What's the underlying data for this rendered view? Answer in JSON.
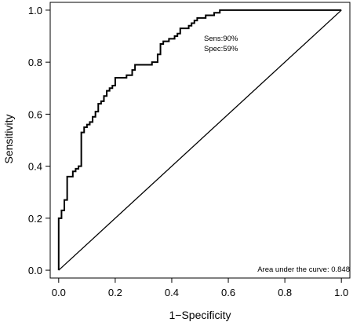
{
  "chart_data": {
    "type": "line",
    "xlabel": "1−Specificity",
    "ylabel": "Sensitivity",
    "xlim": [
      -0.03,
      1.03
    ],
    "ylim": [
      -0.03,
      1.03
    ],
    "xticks": [
      "0.0",
      "0.2",
      "0.4",
      "0.6",
      "0.8",
      "1.0"
    ],
    "yticks": [
      "0.0",
      "0.2",
      "0.4",
      "0.6",
      "0.8",
      "1.0"
    ],
    "grid": false,
    "series": [
      {
        "x": [
          0,
          0,
          0.01,
          0.01,
          0.02,
          0.02,
          0.03,
          0.03,
          0.05,
          0.05,
          0.06,
          0.06,
          0.07,
          0.07,
          0.08,
          0.08,
          0.09,
          0.09,
          0.1,
          0.1,
          0.11,
          0.11,
          0.12,
          0.12,
          0.13,
          0.13,
          0.14,
          0.14,
          0.15,
          0.15,
          0.16,
          0.16,
          0.17,
          0.17,
          0.18,
          0.18,
          0.19,
          0.19,
          0.2,
          0.2,
          0.22,
          0.22,
          0.24,
          0.24,
          0.26,
          0.26,
          0.27,
          0.27,
          0.29,
          0.29,
          0.31,
          0.31,
          0.33,
          0.33,
          0.35,
          0.35,
          0.36,
          0.36,
          0.37,
          0.37,
          0.39,
          0.39,
          0.41,
          0.41,
          0.42,
          0.42,
          0.43,
          0.43,
          0.46,
          0.46,
          0.47,
          0.47,
          0.48,
          0.48,
          0.49,
          0.49,
          0.5,
          0.5,
          0.52,
          0.52,
          0.55,
          0.55,
          0.57,
          0.57,
          1.0
        ],
        "y": [
          0,
          0.2,
          0.2,
          0.23,
          0.23,
          0.27,
          0.27,
          0.36,
          0.36,
          0.38,
          0.38,
          0.39,
          0.39,
          0.4,
          0.4,
          0.53,
          0.53,
          0.55,
          0.55,
          0.56,
          0.56,
          0.57,
          0.57,
          0.59,
          0.59,
          0.61,
          0.61,
          0.64,
          0.64,
          0.65,
          0.65,
          0.67,
          0.67,
          0.69,
          0.69,
          0.7,
          0.7,
          0.71,
          0.71,
          0.74,
          0.74,
          0.74,
          0.74,
          0.75,
          0.75,
          0.77,
          0.77,
          0.79,
          0.79,
          0.79,
          0.79,
          0.79,
          0.79,
          0.8,
          0.8,
          0.83,
          0.83,
          0.87,
          0.87,
          0.88,
          0.88,
          0.89,
          0.89,
          0.9,
          0.9,
          0.91,
          0.91,
          0.93,
          0.93,
          0.94,
          0.94,
          0.95,
          0.95,
          0.96,
          0.96,
          0.97,
          0.97,
          0.97,
          0.97,
          0.98,
          0.98,
          0.99,
          0.99,
          1.0,
          1.0
        ]
      },
      {
        "x": [
          0,
          1
        ],
        "y": [
          0,
          1
        ]
      }
    ],
    "annotations": {
      "sens": "Sens:90%",
      "spec": "Spec:59%",
      "auc": "Area under the curve: 0.848"
    }
  }
}
